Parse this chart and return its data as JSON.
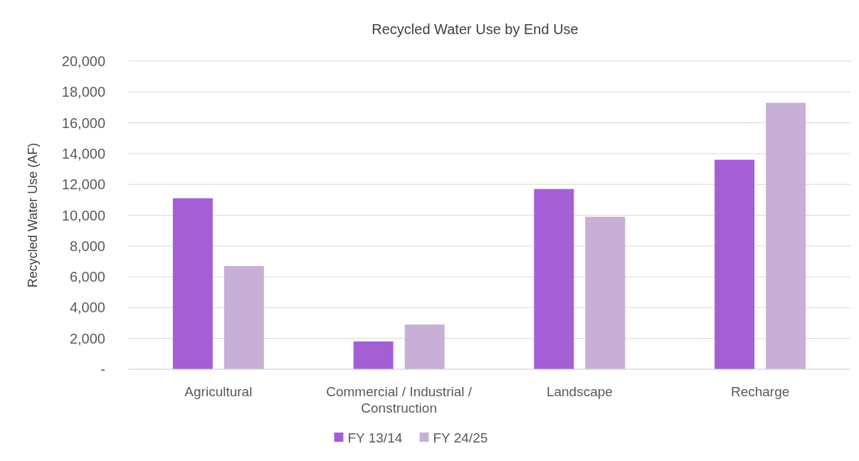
{
  "chart_data": {
    "type": "bar",
    "title": "Recycled Water Use by End Use",
    "ylabel": "Recycled Water Use (AF)",
    "categories": [
      "Agricultural",
      "Commercial / Industrial / Construction",
      "Landscape",
      "Recharge"
    ],
    "series": [
      {
        "name": "FY 13/14",
        "color": "#a45fd6",
        "values": [
          11100,
          1800,
          11700,
          13600
        ]
      },
      {
        "name": "FY 24/25",
        "color": "#c8afd7",
        "values": [
          6700,
          2900,
          9900,
          17300
        ]
      }
    ],
    "ylim": [
      0,
      20000
    ],
    "yticks": [
      {
        "value": 0,
        "label": "-"
      },
      {
        "value": 2000,
        "label": "2,000"
      },
      {
        "value": 4000,
        "label": "4,000"
      },
      {
        "value": 6000,
        "label": "6,000"
      },
      {
        "value": 8000,
        "label": "8,000"
      },
      {
        "value": 10000,
        "label": "10,000"
      },
      {
        "value": 12000,
        "label": "12,000"
      },
      {
        "value": 14000,
        "label": "14,000"
      },
      {
        "value": 16000,
        "label": "16,000"
      },
      {
        "value": 18000,
        "label": "18,000"
      },
      {
        "value": 20000,
        "label": "20,000"
      }
    ],
    "grid": "y",
    "legend": "bottom"
  }
}
